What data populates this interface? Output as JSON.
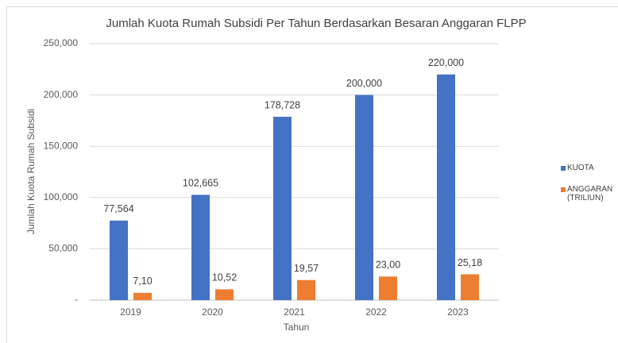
{
  "chart_data": {
    "type": "bar",
    "title": "Jumlah Kuota Rumah Subsidi Per Tahun Berdasarkan Besaran Anggaran FLPP",
    "x_label": "Tahun",
    "y_label": "Jumlah Kuota Rumah Subsidi",
    "categories": [
      "2019",
      "2020",
      "2021",
      "2022",
      "2023"
    ],
    "series": [
      {
        "name": "KUOTA",
        "color": "#4472c4",
        "values": [
          77564,
          102665,
          178728,
          200000,
          220000
        ],
        "value_labels": [
          "77,564",
          "102,665",
          "178,728",
          "200,000",
          "220,000"
        ]
      },
      {
        "name": "ANGGARAN (TRILIUN)",
        "color": "#ed7d31",
        "values": [
          7100,
          10520,
          19570,
          23000,
          25180
        ],
        "value_labels": [
          "7,10",
          "10,52",
          "19,57",
          "23,00",
          "25,18"
        ]
      }
    ],
    "ylim": [
      0,
      250000
    ],
    "yticks": [
      {
        "value": 0,
        "label": "-"
      },
      {
        "value": 50000,
        "label": "50,000"
      },
      {
        "value": 100000,
        "label": "100,000"
      },
      {
        "value": 150000,
        "label": "150,000"
      },
      {
        "value": 200000,
        "label": "200,000"
      },
      {
        "value": 250000,
        "label": "250,000"
      }
    ],
    "grid": true,
    "legend": "right"
  }
}
